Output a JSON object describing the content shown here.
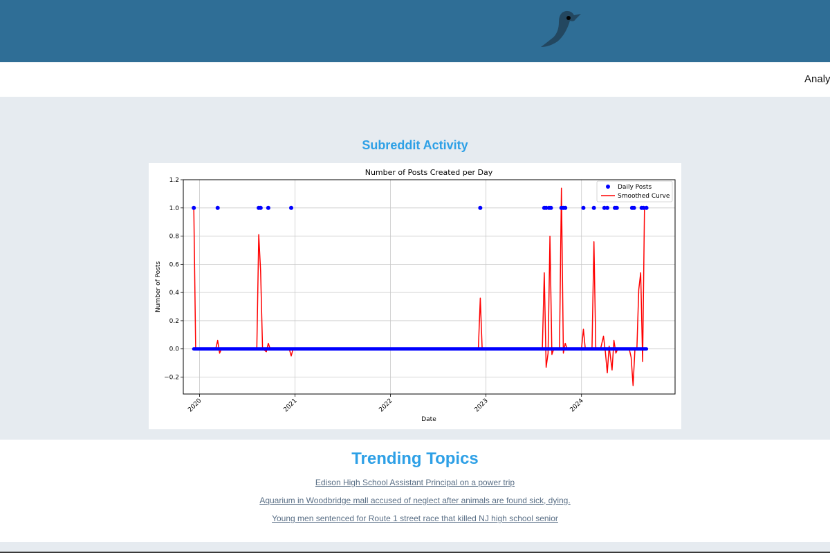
{
  "header": {
    "logo_icon": "bird-icon",
    "background": "#2f6e96"
  },
  "nav": {
    "items": [
      {
        "label": "Analyt"
      }
    ]
  },
  "activity": {
    "title": "Subreddit Activity",
    "chart_data": {
      "type": "line",
      "title": "Number of Posts Created per Day",
      "xlabel": "Date",
      "ylabel": "Number of Posts",
      "ylim": [
        -0.32,
        1.2
      ],
      "y_ticks": [
        -0.2,
        0.0,
        0.2,
        0.4,
        0.6,
        0.8,
        1.0,
        1.2
      ],
      "x_ticks": [
        "2020",
        "2021",
        "2022",
        "2023",
        "2024"
      ],
      "x_range": [
        2019.83,
        2024.98
      ],
      "grid": true,
      "legend": "top-right",
      "series": [
        {
          "name": "Daily Posts",
          "kind": "scatter",
          "color": "#0000ff",
          "x": [
            2019.94,
            2020.19,
            2020.62,
            2020.64,
            2020.72,
            2020.96,
            2022.94,
            2023.61,
            2023.63,
            2023.66,
            2023.68,
            2023.79,
            2023.81,
            2023.83,
            2024.02,
            2024.13,
            2024.24,
            2024.27,
            2024.35,
            2024.37,
            2024.53,
            2024.55,
            2024.63,
            2024.65,
            2024.68
          ],
          "y": [
            1,
            1,
            1,
            1,
            1,
            1,
            1,
            1,
            1,
            1,
            1,
            1,
            1,
            1,
            1,
            1,
            1,
            1,
            1,
            1,
            1,
            1,
            1,
            1,
            1
          ],
          "baseline_range": [
            2019.94,
            2024.68
          ],
          "baseline_value": 0
        },
        {
          "name": "Smoothed Curve",
          "kind": "line",
          "color": "#ff0000",
          "x": [
            2019.94,
            2019.96,
            2020.17,
            2020.19,
            2020.21,
            2020.23,
            2020.6,
            2020.62,
            2020.64,
            2020.66,
            2020.7,
            2020.72,
            2020.74,
            2020.94,
            2020.96,
            2020.98,
            2022.92,
            2022.94,
            2022.96,
            2023.59,
            2023.61,
            2023.63,
            2023.65,
            2023.67,
            2023.69,
            2023.71,
            2023.77,
            2023.79,
            2023.81,
            2023.83,
            2023.85,
            2024.0,
            2024.02,
            2024.04,
            2024.11,
            2024.13,
            2024.15,
            2024.2,
            2024.23,
            2024.25,
            2024.27,
            2024.29,
            2024.32,
            2024.34,
            2024.36,
            2024.38,
            2024.4,
            2024.5,
            2024.52,
            2024.54,
            2024.56,
            2024.58,
            2024.6,
            2024.62,
            2024.64,
            2024.66,
            2024.68
          ],
          "y": [
            1.0,
            0.0,
            0.0,
            0.06,
            -0.03,
            0.0,
            0.0,
            0.81,
            0.55,
            0.0,
            -0.02,
            0.04,
            0.0,
            0.0,
            -0.05,
            0.0,
            0.0,
            0.36,
            0.0,
            0.0,
            0.54,
            -0.13,
            -0.03,
            0.8,
            -0.04,
            0.0,
            0.0,
            1.14,
            -0.03,
            0.04,
            0.0,
            0.0,
            0.14,
            0.0,
            0.0,
            0.76,
            0.0,
            0.0,
            0.09,
            -0.02,
            -0.17,
            0.02,
            -0.15,
            0.06,
            -0.03,
            0.0,
            0.0,
            0.0,
            -0.06,
            -0.26,
            0.0,
            0.0,
            0.42,
            0.54,
            -0.09,
            1.0,
            1.0
          ]
        }
      ]
    }
  },
  "trending": {
    "title": "Trending Topics",
    "topics": [
      "Edison High School Assistant Principal on a power trip",
      "Aquarium in Woodbridge mall accused of neglect after animals are found sick, dying.",
      "Young men sentenced for Route 1 street race that killed NJ high school senior"
    ]
  }
}
